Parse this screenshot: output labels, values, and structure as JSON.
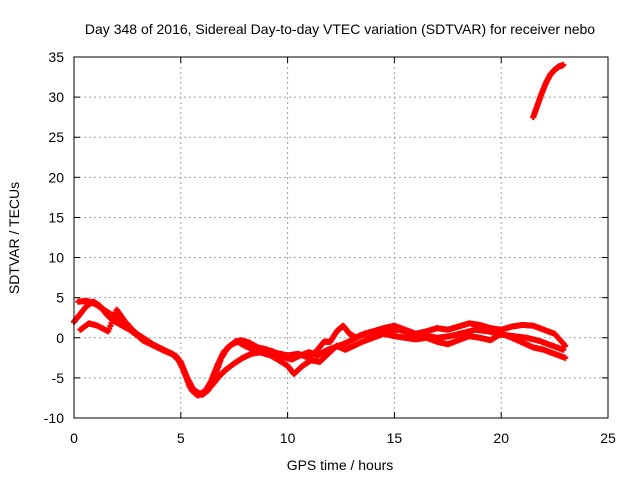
{
  "chart_data": {
    "type": "scatter",
    "title": "Day 348 of 2016, Sidereal Day-to-day VTEC variation (SDTVAR) for receiver nebo",
    "xlabel": "GPS time / hours",
    "ylabel": "SDTVAR / TECUs",
    "xlim": [
      0,
      25
    ],
    "ylim": [
      -10,
      35
    ],
    "x_ticks": [
      0,
      5,
      10,
      15,
      20,
      25
    ],
    "y_ticks": [
      -10,
      -5,
      0,
      5,
      10,
      15,
      20,
      25,
      30,
      35
    ],
    "grid": true,
    "marker": "plus",
    "color": "#ff0000",
    "series": [
      {
        "name": "track-1",
        "points": [
          [
            0.0,
            2.0
          ],
          [
            0.3,
            3.0
          ],
          [
            0.6,
            4.0
          ],
          [
            0.9,
            4.5
          ],
          [
            1.2,
            4.0
          ],
          [
            1.5,
            3.0
          ],
          [
            1.8,
            2.2
          ],
          [
            2.2,
            1.6
          ],
          [
            2.6,
            1.0
          ],
          [
            3.0,
            0.2
          ],
          [
            3.4,
            -0.5
          ],
          [
            3.8,
            -1.0
          ],
          [
            4.2,
            -1.6
          ],
          [
            4.6,
            -2.0
          ],
          [
            4.9,
            -2.8
          ],
          [
            5.2,
            -4.5
          ],
          [
            5.5,
            -6.5
          ],
          [
            5.8,
            -7.2
          ],
          [
            6.1,
            -6.8
          ],
          [
            6.4,
            -5.5
          ],
          [
            6.7,
            -3.5
          ],
          [
            7.0,
            -1.8
          ],
          [
            7.4,
            -0.8
          ],
          [
            7.8,
            -0.3
          ],
          [
            8.2,
            -0.6
          ],
          [
            8.6,
            -1.2
          ],
          [
            9.0,
            -1.6
          ],
          [
            9.5,
            -1.9
          ],
          [
            10.0,
            -2.2
          ],
          [
            10.5,
            -2.0
          ],
          [
            11.0,
            -2.5
          ],
          [
            11.4,
            -1.5
          ],
          [
            11.7,
            -0.5
          ],
          [
            12.0,
            -0.5
          ],
          [
            12.3,
            0.8
          ],
          [
            12.6,
            1.5
          ],
          [
            12.9,
            0.5
          ],
          [
            13.2,
            0.0
          ],
          [
            13.6,
            0.5
          ],
          [
            14.0,
            0.8
          ],
          [
            14.5,
            1.2
          ],
          [
            15.0,
            1.5
          ],
          [
            15.5,
            1.0
          ],
          [
            16.0,
            0.5
          ],
          [
            16.5,
            0.8
          ],
          [
            17.0,
            1.2
          ],
          [
            17.5,
            1.0
          ],
          [
            18.0,
            1.4
          ],
          [
            18.5,
            1.8
          ],
          [
            19.0,
            1.6
          ],
          [
            19.5,
            1.2
          ],
          [
            20.0,
            1.0
          ],
          [
            20.5,
            1.4
          ],
          [
            21.0,
            1.6
          ],
          [
            21.5,
            1.5
          ],
          [
            22.0,
            1.0
          ],
          [
            22.5,
            0.5
          ],
          [
            23.0,
            -1.0
          ]
        ]
      },
      {
        "name": "track-2",
        "points": [
          [
            0.2,
            4.5
          ],
          [
            0.6,
            4.6
          ],
          [
            1.0,
            4.2
          ],
          [
            1.4,
            3.5
          ],
          [
            1.8,
            2.8
          ],
          [
            2.2,
            2.0
          ],
          [
            2.6,
            1.2
          ],
          [
            3.0,
            0.4
          ],
          [
            3.4,
            -0.3
          ],
          [
            3.8,
            -1.0
          ],
          [
            4.2,
            -1.5
          ],
          [
            4.6,
            -2.0
          ],
          [
            5.0,
            -3.0
          ],
          [
            5.3,
            -5.0
          ],
          [
            5.6,
            -6.5
          ],
          [
            5.9,
            -7.0
          ],
          [
            6.2,
            -6.6
          ],
          [
            6.5,
            -5.8
          ],
          [
            6.8,
            -4.8
          ],
          [
            7.1,
            -4.0
          ],
          [
            7.5,
            -3.2
          ],
          [
            7.9,
            -2.5
          ],
          [
            8.3,
            -2.0
          ],
          [
            8.7,
            -1.8
          ],
          [
            9.2,
            -2.2
          ],
          [
            9.6,
            -2.8
          ],
          [
            10.0,
            -3.5
          ],
          [
            10.3,
            -4.5
          ],
          [
            10.7,
            -3.5
          ],
          [
            11.1,
            -2.8
          ],
          [
            11.5,
            -3.0
          ],
          [
            11.9,
            -2.0
          ],
          [
            12.3,
            -1.0
          ],
          [
            12.7,
            -1.5
          ],
          [
            13.1,
            -1.0
          ],
          [
            13.5,
            -0.5
          ],
          [
            14.0,
            0.0
          ],
          [
            14.5,
            0.5
          ],
          [
            15.0,
            0.2
          ],
          [
            15.5,
            0.0
          ],
          [
            16.0,
            -0.2
          ],
          [
            16.5,
            0.0
          ],
          [
            17.0,
            -0.5
          ],
          [
            17.5,
            -0.8
          ],
          [
            18.0,
            -0.3
          ],
          [
            18.5,
            0.2
          ],
          [
            19.0,
            0.0
          ],
          [
            19.5,
            -0.3
          ],
          [
            20.0,
            0.5
          ],
          [
            20.5,
            0.0
          ],
          [
            21.0,
            -0.6
          ],
          [
            21.5,
            -1.2
          ],
          [
            22.0,
            -1.5
          ],
          [
            22.5,
            -2.0
          ],
          [
            23.0,
            -2.5
          ]
        ]
      },
      {
        "name": "track-3",
        "points": [
          [
            0.3,
            1.0
          ],
          [
            0.7,
            1.8
          ],
          [
            1.1,
            1.5
          ],
          [
            1.6,
            0.8
          ],
          [
            2.0,
            3.5
          ],
          [
            2.4,
            2.0
          ],
          [
            2.8,
            0.8
          ],
          [
            3.2,
            -0.3
          ],
          [
            3.6,
            -0.8
          ],
          [
            4.0,
            -1.3
          ],
          [
            4.4,
            -1.8
          ],
          [
            4.8,
            -2.3
          ],
          [
            5.1,
            -3.8
          ],
          [
            5.4,
            -6.0
          ],
          [
            5.7,
            -7.0
          ],
          [
            6.0,
            -7.1
          ],
          [
            6.3,
            -6.5
          ],
          [
            6.6,
            -4.8
          ],
          [
            6.9,
            -2.5
          ],
          [
            7.2,
            -1.2
          ],
          [
            7.6,
            -0.4
          ],
          [
            8.0,
            -1.0
          ],
          [
            8.4,
            -1.5
          ],
          [
            8.8,
            -1.3
          ],
          [
            9.3,
            -1.7
          ],
          [
            9.8,
            -2.4
          ],
          [
            10.2,
            -2.7
          ],
          [
            10.6,
            -2.2
          ],
          [
            11.0,
            -1.8
          ],
          [
            11.4,
            -2.2
          ],
          [
            11.8,
            -1.6
          ],
          [
            12.2,
            -1.2
          ],
          [
            12.6,
            -0.8
          ],
          [
            13.0,
            -0.3
          ],
          [
            13.4,
            0.3
          ],
          [
            13.8,
            0.5
          ],
          [
            14.2,
            0.3
          ],
          [
            14.6,
            0.7
          ],
          [
            15.2,
            1.0
          ],
          [
            15.8,
            0.5
          ],
          [
            16.4,
            0.3
          ],
          [
            17.0,
            0.0
          ],
          [
            17.6,
            0.2
          ],
          [
            18.2,
            0.6
          ],
          [
            18.8,
            1.0
          ],
          [
            19.4,
            0.8
          ],
          [
            20.0,
            0.4
          ],
          [
            20.6,
            0.2
          ],
          [
            21.2,
            0.0
          ],
          [
            21.8,
            -0.4
          ],
          [
            22.4,
            -1.0
          ],
          [
            22.9,
            -1.5
          ]
        ]
      },
      {
        "name": "track-4",
        "points": [
          [
            21.5,
            27.5
          ],
          [
            21.7,
            29.0
          ],
          [
            21.9,
            30.5
          ],
          [
            22.1,
            31.8
          ],
          [
            22.3,
            32.8
          ],
          [
            22.5,
            33.4
          ],
          [
            22.7,
            33.8
          ],
          [
            22.9,
            34.0
          ]
        ]
      }
    ]
  }
}
